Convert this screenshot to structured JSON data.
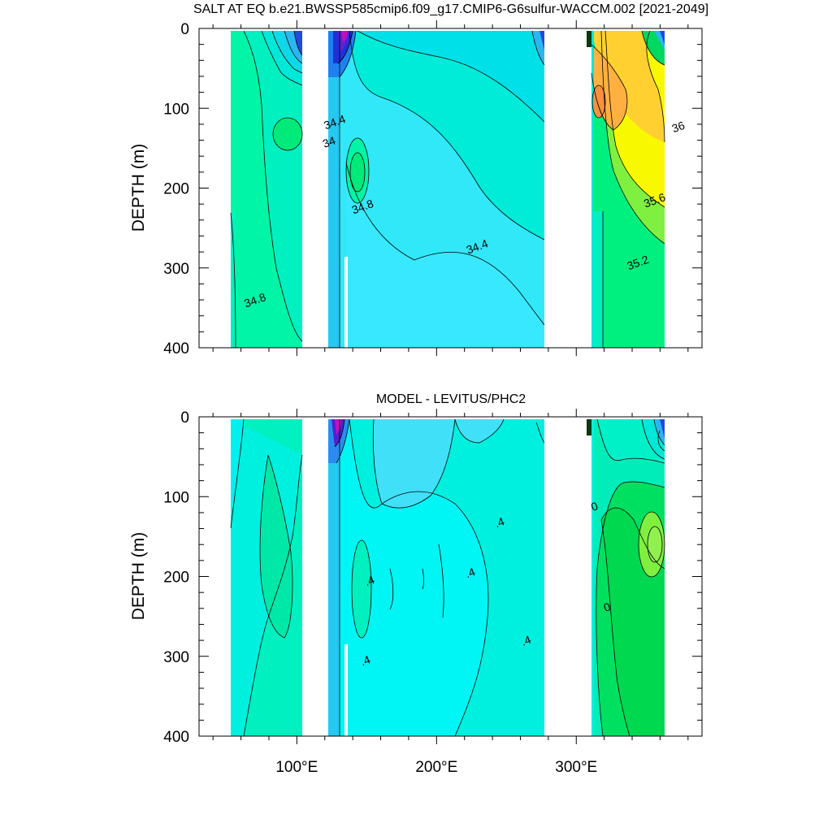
{
  "chart_data": [
    {
      "type": "contour",
      "title": "SALT AT EQ b.e21.BWSSP585cmip6.f09_g17.CMIP6-G6sulfur-WACCM.002 [2021-2049]",
      "ylabel": "DEPTH (m)",
      "xlim": [
        30,
        390
      ],
      "ylim": [
        400,
        0
      ],
      "yticks": [
        0,
        100,
        200,
        300,
        400
      ],
      "ytick_labels": [
        "0",
        "100",
        "200",
        "300",
        "400"
      ],
      "xticks": [
        100,
        200,
        300
      ],
      "xtick_labels": [
        "100°E",
        "200°E",
        "300°E"
      ],
      "grid": false,
      "contour_labels": [
        {
          "text": "34.8",
          "x": 71,
          "y": 345
        },
        {
          "text": "34",
          "x": 124,
          "y": 147
        },
        {
          "text": "34.4",
          "x": 128,
          "y": 122
        },
        {
          "text": "34.8",
          "x": 148,
          "y": 228
        },
        {
          "text": "34.4",
          "x": 230,
          "y": 278
        },
        {
          "text": "36",
          "x": 374,
          "y": 128
        },
        {
          "text": "35.6",
          "x": 357,
          "y": 220
        },
        {
          "text": "35.2",
          "x": 345,
          "y": 298
        }
      ]
    },
    {
      "type": "contour",
      "title": "MODEL - LEVITUS/PHC2",
      "ylabel": "DEPTH (m)",
      "xlim": [
        30,
        390
      ],
      "ylim": [
        400,
        0
      ],
      "yticks": [
        0,
        100,
        200,
        300,
        400
      ],
      "ytick_labels": [
        "0",
        "100",
        "200",
        "300",
        "400"
      ],
      "xticks": [
        100,
        200,
        300
      ],
      "xtick_labels": [
        "100°E",
        "200°E",
        "300°E"
      ],
      "grid": false,
      "contour_labels": [
        {
          "text": "0",
          "x": 314,
          "y": 117
        },
        {
          "text": ".4",
          "x": 246,
          "y": 137
        },
        {
          "text": ".4",
          "x": 153,
          "y": 210
        },
        {
          "text": ".4",
          "x": 225,
          "y": 200
        },
        {
          "text": ".4",
          "x": 265,
          "y": 285
        },
        {
          "text": ".4",
          "x": 150,
          "y": 310
        },
        {
          "text": "0",
          "x": 323,
          "y": 243
        }
      ]
    }
  ]
}
